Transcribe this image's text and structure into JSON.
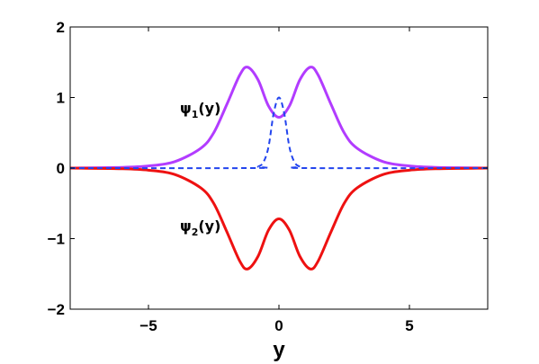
{
  "chart_data": {
    "type": "line",
    "title": "",
    "xlabel": "y",
    "ylabel": "",
    "xlim": [
      -8,
      8
    ],
    "ylim": [
      -2,
      2
    ],
    "xticks": [
      -5,
      0,
      5
    ],
    "xtick_labels": [
      "−5",
      "0",
      "5"
    ],
    "yticks": [
      -2,
      -1,
      0,
      1,
      2
    ],
    "ytick_labels": [
      "−2",
      "−1",
      "0",
      "1",
      "2"
    ],
    "grid": false,
    "annotations": [
      {
        "symbol": "ψ",
        "sub": "1",
        "suffix": "(y)",
        "x": -3.6,
        "y": 0.85
      },
      {
        "symbol": "ψ",
        "sub": "2",
        "suffix": "(y)",
        "x": -3.6,
        "y": -0.85
      }
    ],
    "series": [
      {
        "color": "#b23cff",
        "style": "solid",
        "x": [
          -8,
          -6,
          -5,
          -4,
          -3,
          -2.5,
          -2,
          -1.5,
          -1.2,
          -0.8,
          -0.4,
          0,
          0.4,
          0.8,
          1.2,
          1.5,
          2,
          2.5,
          3,
          4,
          5,
          6,
          8
        ],
        "y": [
          0,
          0.01,
          0.03,
          0.09,
          0.28,
          0.5,
          0.9,
          1.32,
          1.43,
          1.25,
          0.88,
          0.72,
          0.88,
          1.25,
          1.43,
          1.32,
          0.9,
          0.5,
          0.28,
          0.09,
          0.03,
          0.01,
          0
        ]
      },
      {
        "color": "#ee1111",
        "style": "solid",
        "x": [
          -8,
          -6,
          -5,
          -4,
          -3,
          -2.5,
          -2,
          -1.5,
          -1.2,
          -0.8,
          -0.4,
          0,
          0.4,
          0.8,
          1.2,
          1.5,
          2,
          2.5,
          3,
          4,
          5,
          6,
          8
        ],
        "y": [
          0,
          -0.01,
          -0.03,
          -0.09,
          -0.28,
          -0.5,
          -0.9,
          -1.32,
          -1.43,
          -1.25,
          -0.88,
          -0.72,
          -0.88,
          -1.25,
          -1.43,
          -1.32,
          -0.9,
          -0.5,
          -0.28,
          -0.09,
          -0.03,
          -0.01,
          0
        ]
      },
      {
        "color": "#2244ee",
        "style": "dashed",
        "x": [
          -8,
          -1,
          -0.8,
          -0.6,
          -0.4,
          -0.2,
          0,
          0.2,
          0.4,
          0.6,
          0.8,
          1,
          8
        ],
        "y": [
          0,
          0,
          0.02,
          0.08,
          0.3,
          0.78,
          1,
          0.78,
          0.3,
          0.08,
          0.02,
          0,
          0
        ]
      }
    ]
  }
}
